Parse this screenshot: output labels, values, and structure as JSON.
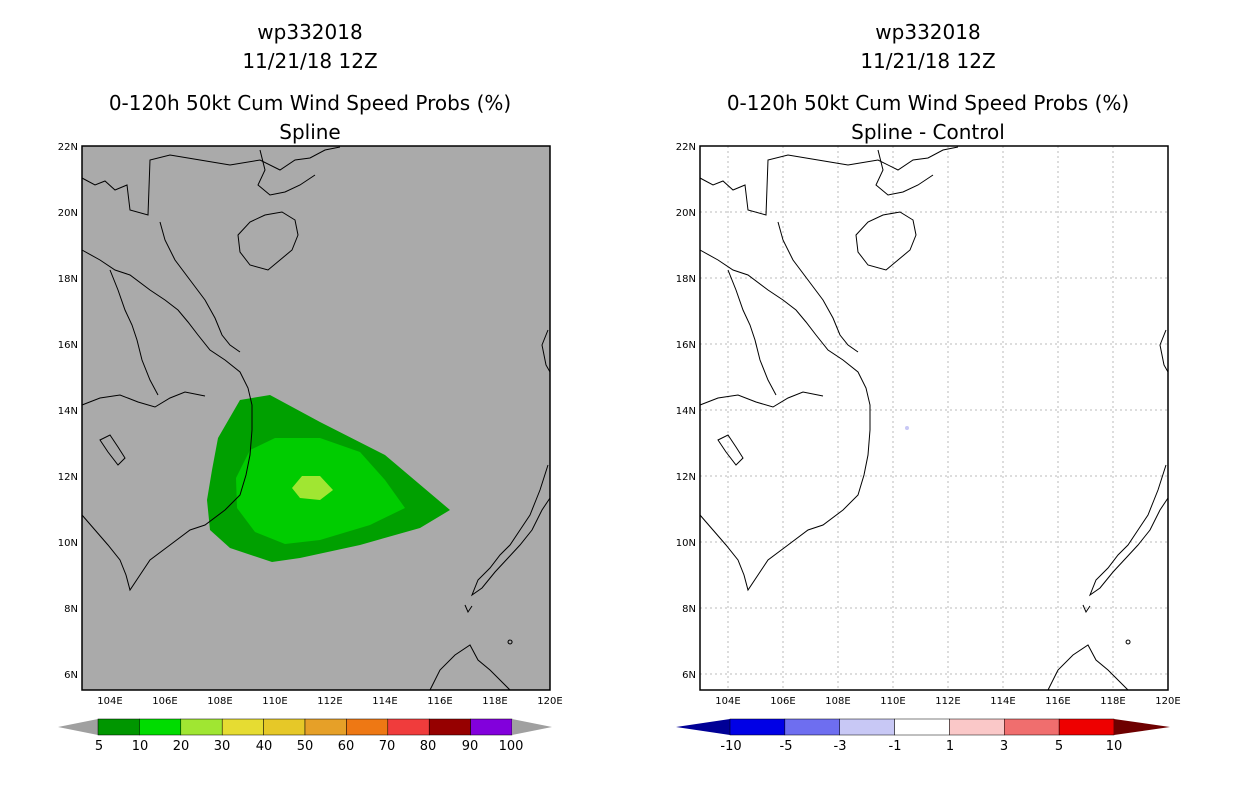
{
  "left": {
    "storm_id": "wp332018",
    "datetime": "11/21/18 12Z",
    "title": "0-120h 50kt Cum Wind Speed Probs (%)",
    "subtitle": "Spline",
    "background_color": "#aaaaaa",
    "lat_ticks": [
      "22N",
      "20N",
      "18N",
      "16N",
      "14N",
      "12N",
      "10N",
      "8N",
      "6N"
    ],
    "lon_ticks": [
      "104E",
      "106E",
      "108E",
      "110E",
      "112E",
      "114E",
      "116E",
      "118E",
      "120E"
    ],
    "contour_colors": {
      "p5": "#00a000",
      "p10": "#00cc00",
      "p20": "#a0e632"
    },
    "colorbar": {
      "labels": [
        "5",
        "10",
        "20",
        "30",
        "40",
        "50",
        "60",
        "70",
        "80",
        "90",
        "100"
      ],
      "colors": [
        "#009600",
        "#00dc00",
        "#a0e632",
        "#e6dc32",
        "#e6c828",
        "#e6a028",
        "#ee7814",
        "#f03c3c",
        "#960000",
        "#8200dc"
      ],
      "end_color": "#a0a0a0"
    }
  },
  "right": {
    "storm_id": "wp332018",
    "datetime": "11/21/18 12Z",
    "title": "0-120h 50kt Cum Wind Speed Probs (%)",
    "subtitle": "Spline - Control",
    "background_color": "#ffffff",
    "lat_ticks": [
      "22N",
      "20N",
      "18N",
      "16N",
      "14N",
      "12N",
      "10N",
      "8N",
      "6N"
    ],
    "lon_ticks": [
      "104E",
      "106E",
      "108E",
      "110E",
      "112E",
      "114E",
      "116E",
      "118E",
      "120E"
    ],
    "colorbar": {
      "labels": [
        "-10",
        "-5",
        "-3",
        "-1",
        "1",
        "3",
        "5",
        "10"
      ],
      "colors": [
        "#0000e6",
        "#6e6ef0",
        "#c8c8f5",
        "#ffffff",
        "#fac8c8",
        "#f06e6e",
        "#ee0000"
      ],
      "left_end_color": "#000096",
      "right_end_color": "#6e0000"
    }
  }
}
